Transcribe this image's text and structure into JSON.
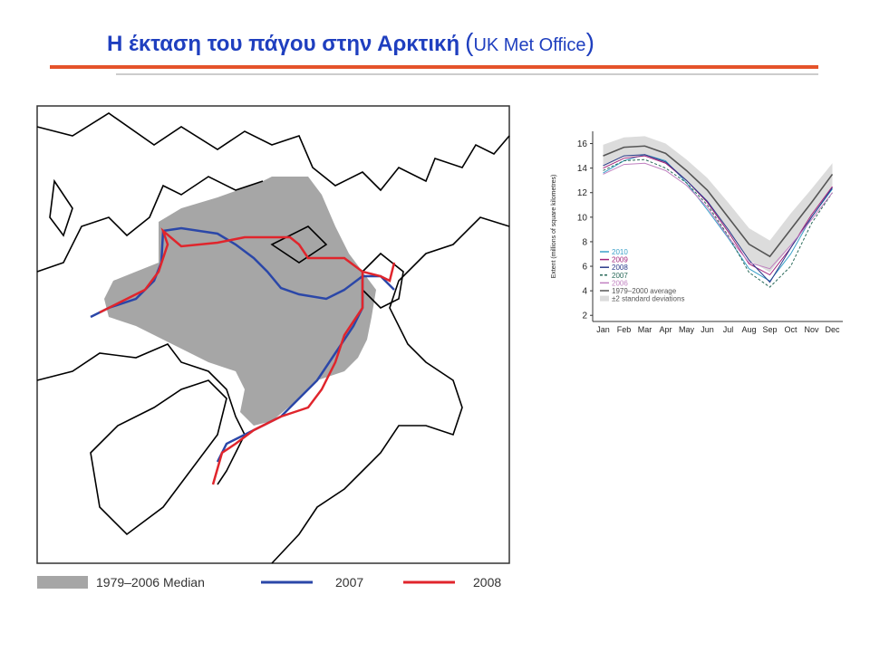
{
  "header": {
    "title": "Η έκταση του πάγου στην Αρκτική",
    "paren_open": "(",
    "source": "UK Met Office",
    "paren_close": ")"
  },
  "map": {
    "legend": [
      "1979–2006 Median",
      "2007",
      "2008"
    ]
  },
  "chart_data": {
    "type": "line",
    "y_label": "Extent (millions of square kilometres)",
    "categories": [
      "Jan",
      "Feb",
      "Mar",
      "Apr",
      "May",
      "Jun",
      "Jul",
      "Aug",
      "Sep",
      "Oct",
      "Nov",
      "Dec"
    ],
    "ylim": [
      1.5,
      17
    ],
    "yticks": [
      2,
      4,
      6,
      8,
      10,
      12,
      14,
      16
    ],
    "band": {
      "name": "±2 standard deviations",
      "color": "#dcdcdc",
      "upper": [
        15.9,
        16.5,
        16.6,
        16.0,
        14.7,
        13.2,
        11.2,
        9.1,
        8.1,
        10.3,
        12.3,
        14.4
      ],
      "lower": [
        14.1,
        14.9,
        15.0,
        14.4,
        12.9,
        11.2,
        8.8,
        6.5,
        5.5,
        7.7,
        10.1,
        12.6
      ]
    },
    "series": [
      {
        "name": "2010",
        "color": "#3aa0c8",
        "values": [
          13.6,
          14.6,
          15.1,
          14.6,
          12.8,
          10.6,
          8.3,
          5.8,
          4.8,
          7.0,
          10.0,
          12.3
        ]
      },
      {
        "name": "2009",
        "color": "#a0227a",
        "values": [
          14.0,
          14.8,
          15.0,
          14.4,
          13.0,
          11.2,
          8.8,
          6.2,
          5.3,
          7.5,
          10.2,
          12.5
        ]
      },
      {
        "name": "2008",
        "color": "#2a3a8a",
        "values": [
          14.2,
          15.0,
          15.1,
          14.5,
          13.0,
          11.3,
          9.0,
          6.5,
          4.7,
          7.5,
          10.0,
          12.4
        ]
      },
      {
        "name": "2007",
        "color": "#2a6a5a",
        "dashed": true,
        "values": [
          13.8,
          14.6,
          14.7,
          14.0,
          12.8,
          11.0,
          8.5,
          5.5,
          4.3,
          6.0,
          9.5,
          12.0
        ]
      },
      {
        "name": "2006",
        "color": "#c080c0",
        "values": [
          13.5,
          14.3,
          14.4,
          13.8,
          12.6,
          10.8,
          8.4,
          6.3,
          5.8,
          7.7,
          9.8,
          12.0
        ]
      },
      {
        "name": "1979–2000 average",
        "color": "#555555",
        "width": 1.6,
        "values": [
          15.0,
          15.7,
          15.8,
          15.2,
          13.8,
          12.2,
          10.0,
          7.8,
          6.8,
          9.0,
          11.2,
          13.5
        ]
      }
    ]
  }
}
